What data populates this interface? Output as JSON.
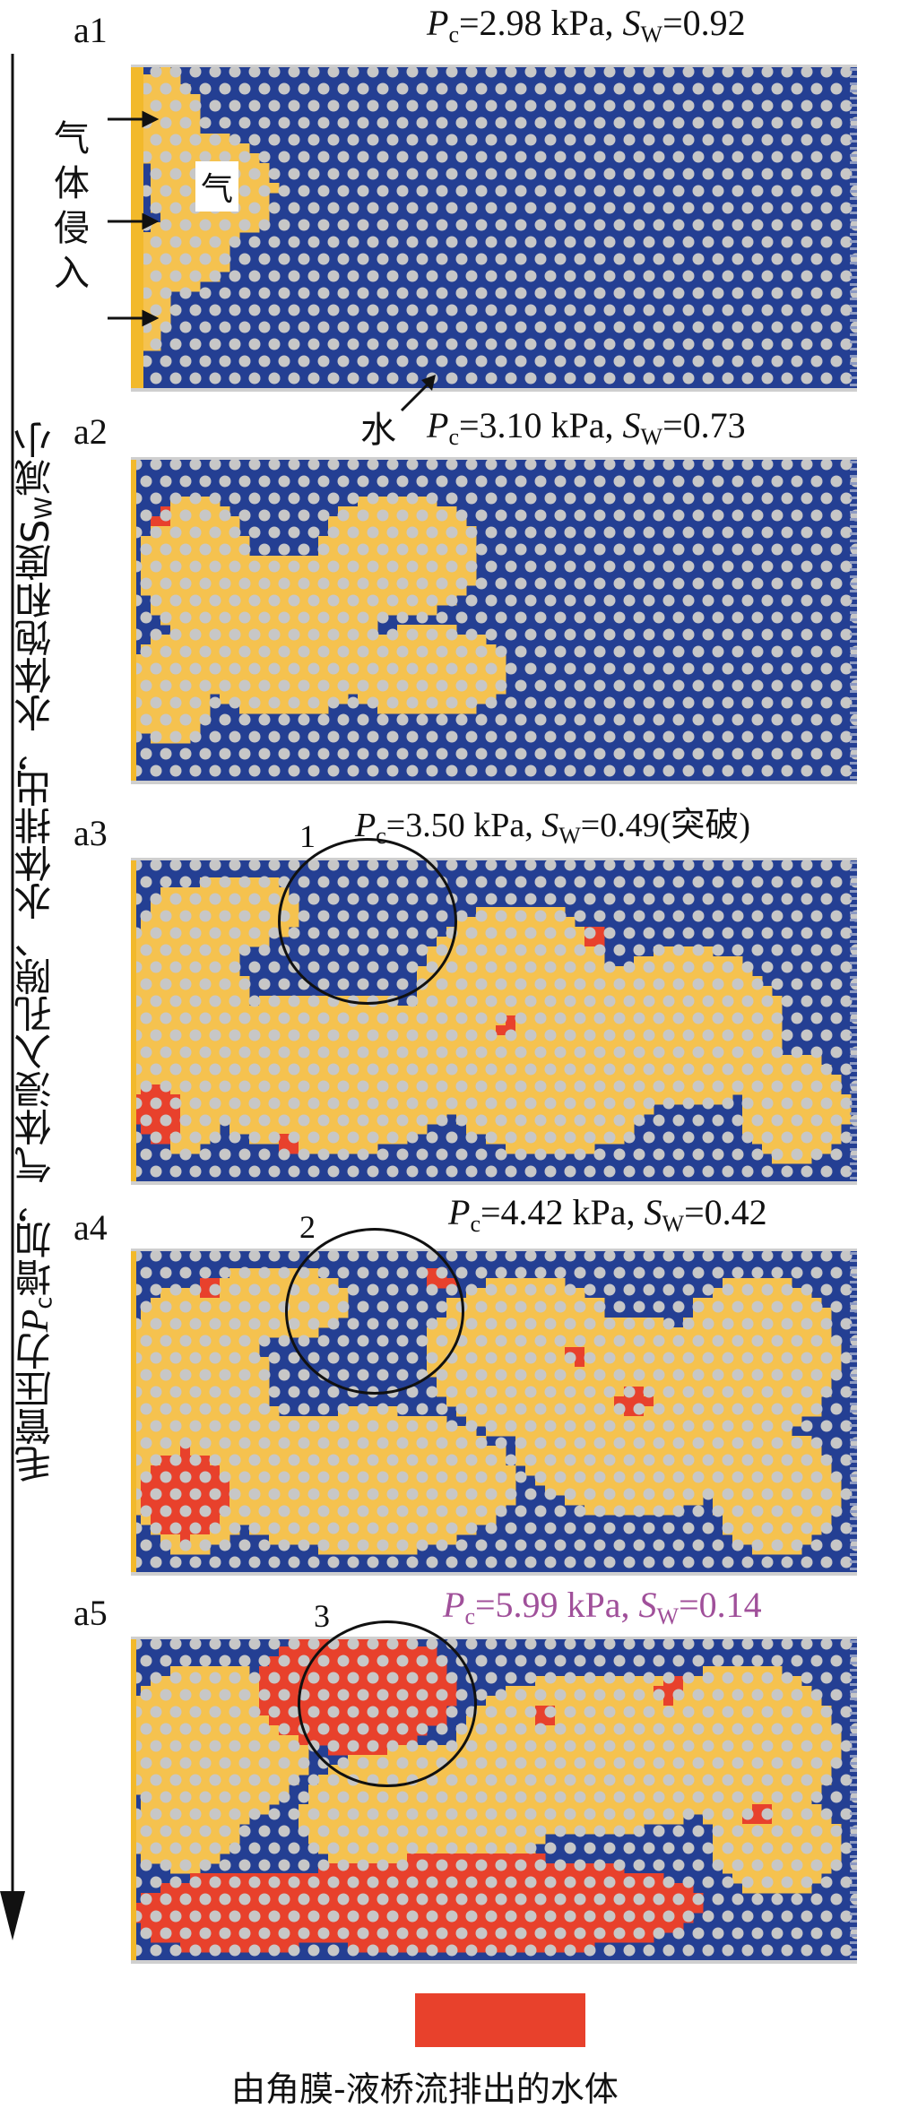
{
  "side_label": {
    "prefix": "毛管压力",
    "P": "P",
    "c": "c",
    "mid": "增加，气体浸入孔隙、水体排出，水体饱和度",
    "S": "S",
    "W": "W",
    "suffix": "减小"
  },
  "invasion_label": "气体侵入",
  "gas_label": "气",
  "water_label": "水",
  "panels": [
    {
      "id": "a1",
      "pc": "2.98 kPa",
      "sw": "0.92",
      "note": "",
      "color": "#111111"
    },
    {
      "id": "a2",
      "pc": "3.10 kPa",
      "sw": "0.73",
      "note": "",
      "color": "#111111"
    },
    {
      "id": "a3",
      "pc": "3.50 kPa",
      "sw": "0.49",
      "note": "(突破)",
      "color": "#111111"
    },
    {
      "id": "a4",
      "pc": "4.42 kPa",
      "sw": "0.42",
      "note": "",
      "color": "#111111"
    },
    {
      "id": "a5",
      "pc": "5.99 kPa",
      "sw": "0.14",
      "note": "",
      "color": "#a0509a"
    }
  ],
  "circles": [
    "1",
    "2",
    "3"
  ],
  "legend": "由角膜-液桥流排出的水体",
  "colors": {
    "water": "#243f93",
    "gas": "#f5c24f",
    "grain": "#c7c7c7",
    "drained": "#e8412c",
    "boundary": "#f2b92b"
  }
}
